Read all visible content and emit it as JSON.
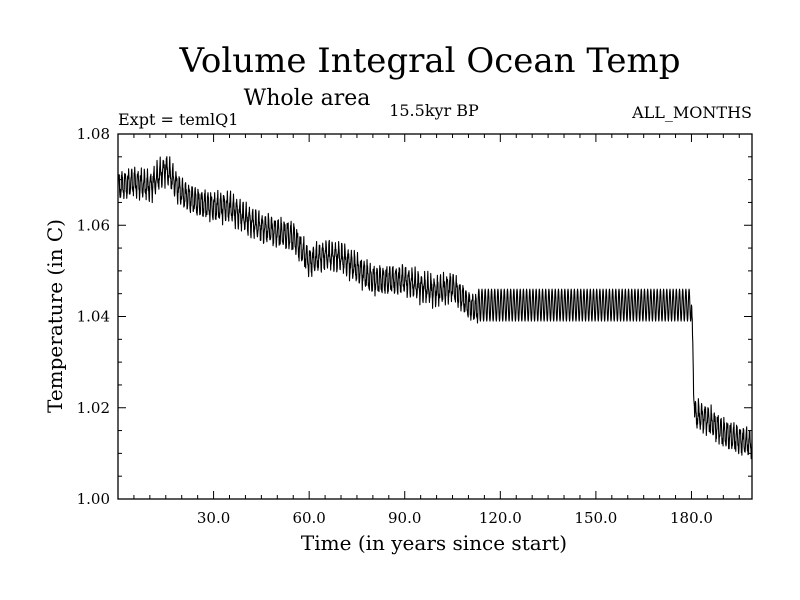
{
  "colors": {
    "background": "#ffffff",
    "line": "#000000",
    "axes": "#000000"
  },
  "chart_data": {
    "type": "line",
    "title": "Volume Integral Ocean Temp",
    "subtitle": "Whole area",
    "experiment_label": "Expt = temlQ1",
    "period_label": "15.5kyr BP",
    "months_label": "ALL_MONTHS",
    "xlabel": "Time (in years since start)",
    "ylabel": "Temperature (in C)",
    "xlim": [
      0,
      199
    ],
    "ylim": [
      1.0,
      1.08
    ],
    "x_ticks": [
      30,
      60,
      90,
      120,
      150,
      180
    ],
    "x_tick_labels": [
      "30.0",
      "60.0",
      "90.0",
      "120.0",
      "150.0",
      "180.0"
    ],
    "y_ticks": [
      1.0,
      1.02,
      1.04,
      1.06,
      1.08
    ],
    "y_tick_labels": [
      "1.00",
      "1.02",
      "1.04",
      "1.06",
      "1.08"
    ],
    "grid": false,
    "series": [
      {
        "name": "Volume integral ocean temperature",
        "sampling": "monthly",
        "seasonal_cycle_amplitude": 0.0025,
        "steady_window": {
          "start": 113,
          "end": 180
        },
        "steady_cycle_range": [
          1.039,
          1.046
        ],
        "envelope": {
          "x": [
            0,
            5,
            10,
            15,
            20,
            25,
            30,
            35,
            40,
            45,
            50,
            55,
            60,
            65,
            70,
            75,
            80,
            85,
            90,
            95,
            100,
            105,
            110,
            113,
            180,
            181,
            185,
            190,
            195,
            199
          ],
          "y": [
            1.0685,
            1.0695,
            1.0685,
            1.0725,
            1.067,
            1.065,
            1.064,
            1.064,
            1.0615,
            1.0595,
            1.0585,
            1.0575,
            1.052,
            1.0535,
            1.053,
            1.0505,
            1.048,
            1.048,
            1.048,
            1.0465,
            1.0455,
            1.0465,
            1.0425,
            1.0415,
            1.0425,
            1.0185,
            1.0175,
            1.0145,
            1.013,
            1.012
          ]
        }
      }
    ]
  }
}
